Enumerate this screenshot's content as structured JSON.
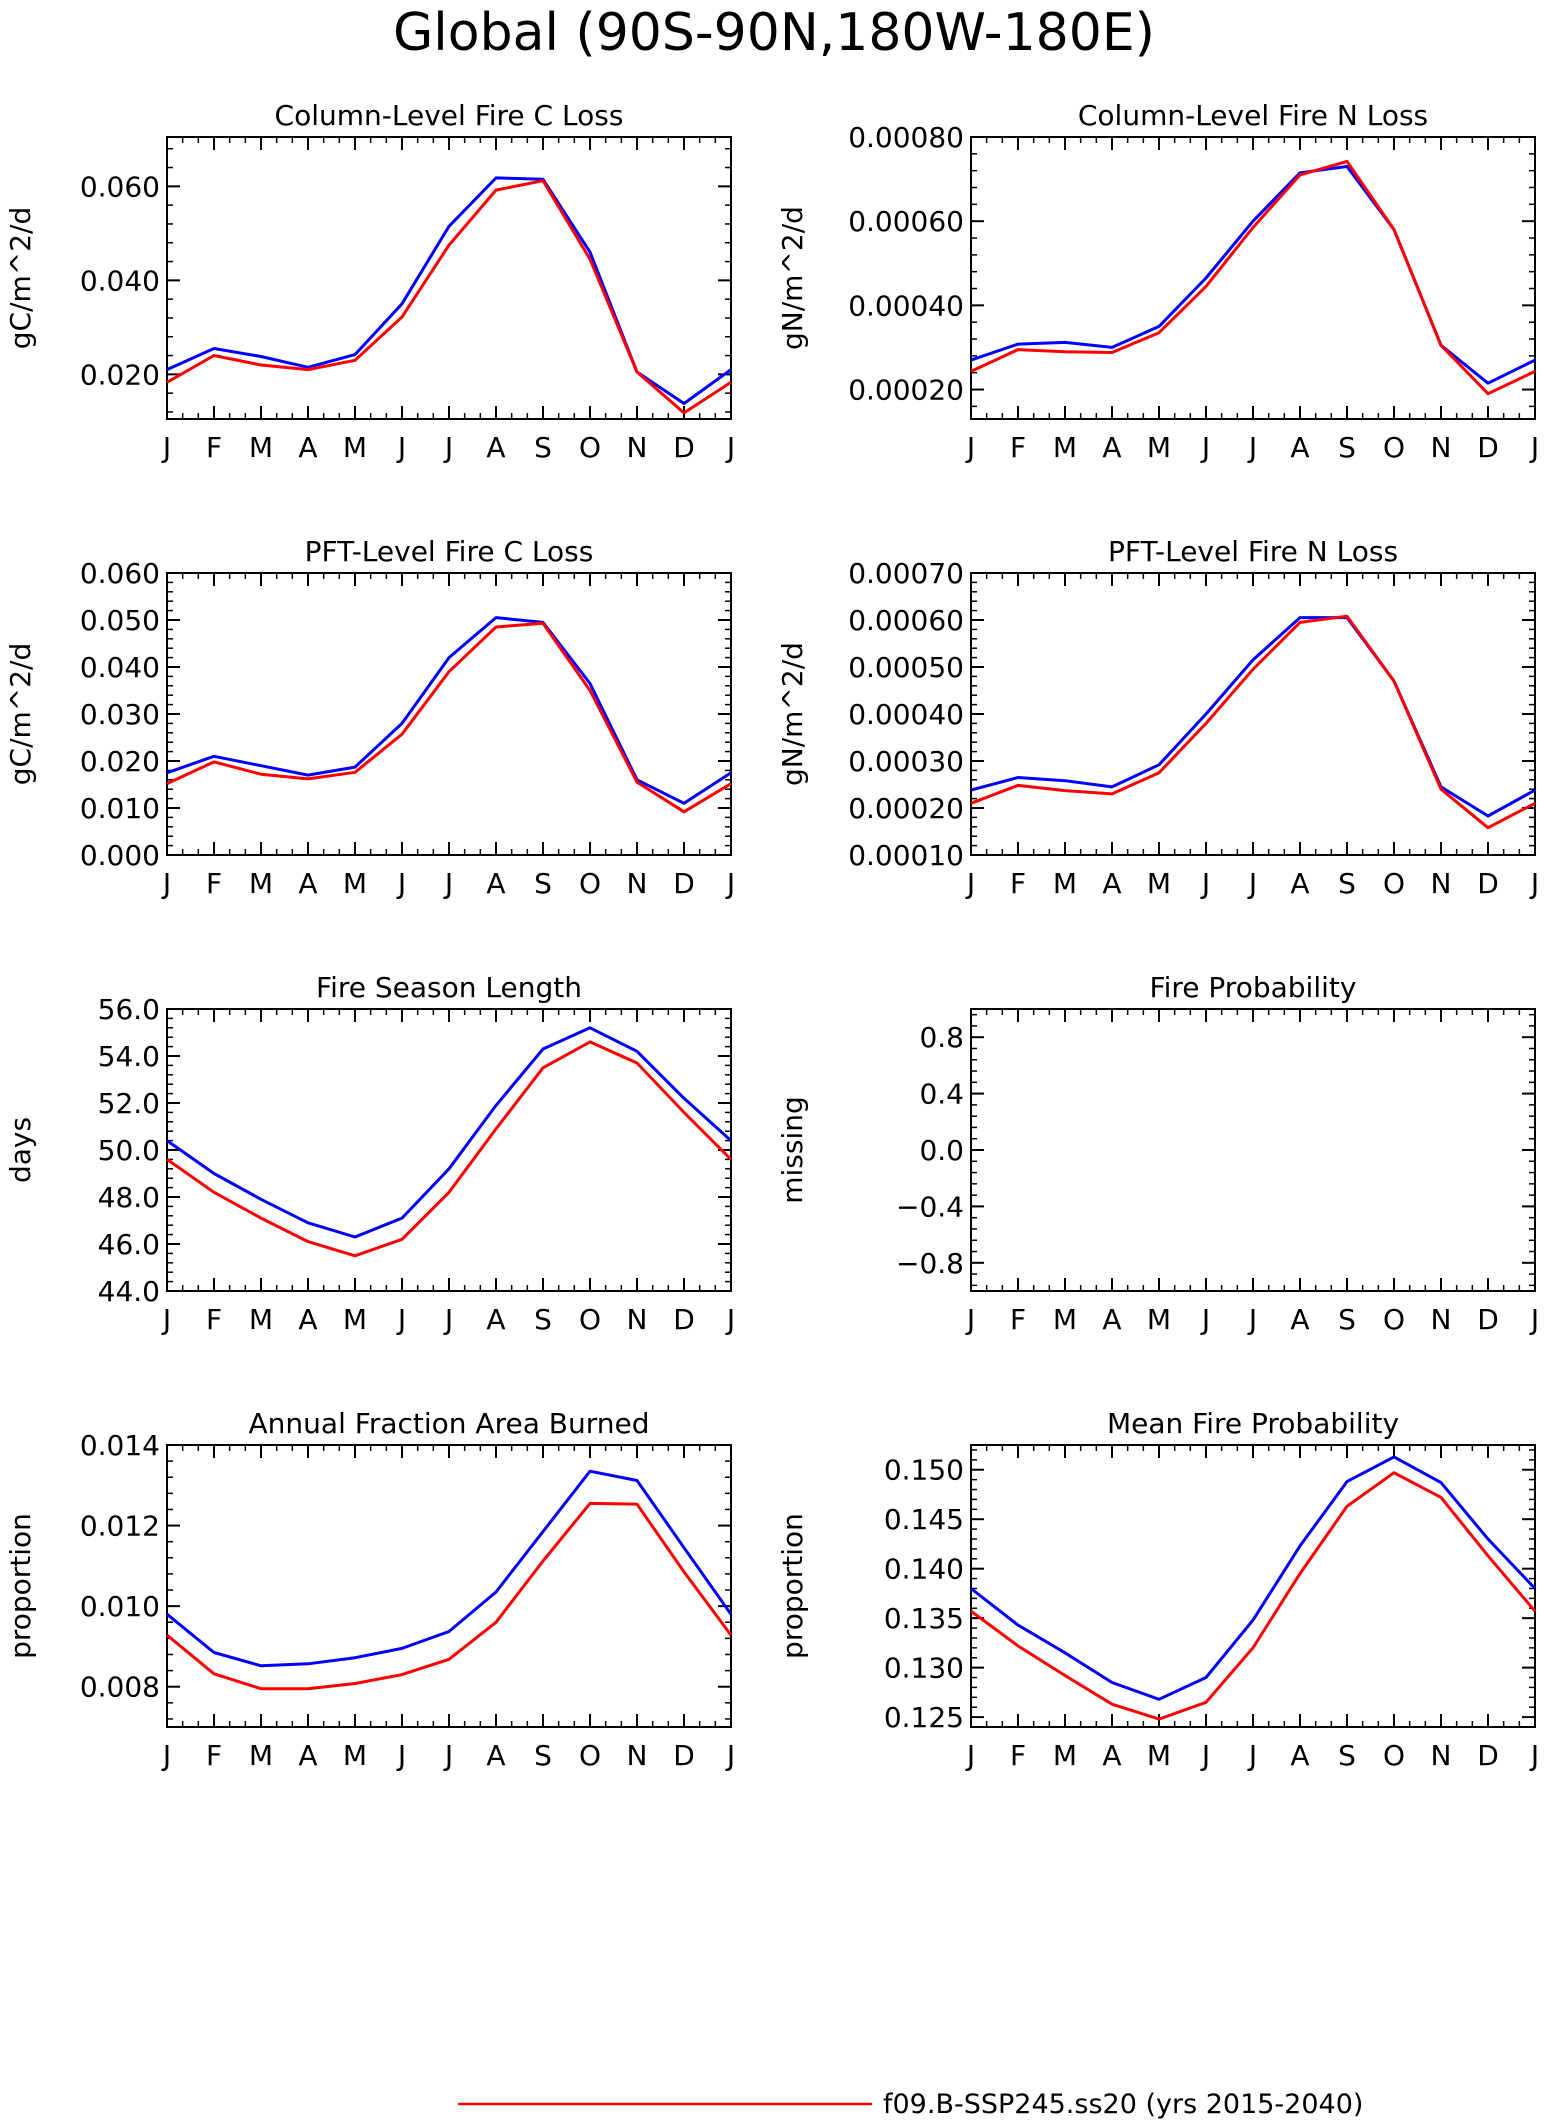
{
  "title": "Global (90S-90N,180W-180E)",
  "month_labels": [
    "J",
    "F",
    "M",
    "A",
    "M",
    "J",
    "J",
    "A",
    "S",
    "O",
    "N",
    "D",
    "J"
  ],
  "colors": {
    "series_red": "#ff0000",
    "series_blue": "#0000ff",
    "axis": "#000000"
  },
  "legend": {
    "label": "f09.B-SSP245.ss20 (yrs 2015-2040)"
  },
  "chart_data": [
    {
      "type": "line",
      "title": "Column-Level Fire C Loss",
      "ylabel": "gC/m^2/d",
      "ylim": [
        0.0105,
        0.0705
      ],
      "yticks": [
        0.02,
        0.04,
        0.06
      ],
      "yticklabels": [
        "0.020",
        "0.040",
        "0.060"
      ],
      "series": [
        {
          "color": "#0000ff",
          "values": [
            0.021,
            0.0255,
            0.0238,
            0.0215,
            0.0242,
            0.035,
            0.0515,
            0.0618,
            0.0615,
            0.046,
            0.0205,
            0.0138,
            0.021
          ]
        },
        {
          "color": "#ff0000",
          "values": [
            0.0183,
            0.024,
            0.022,
            0.021,
            0.023,
            0.0322,
            0.0475,
            0.0592,
            0.0612,
            0.0445,
            0.0205,
            0.0118,
            0.0183
          ]
        }
      ]
    },
    {
      "type": "line",
      "title": "Column-Level Fire N Loss",
      "ylabel": "gN/m^2/d",
      "ylim": [
        0.00013,
        0.0008
      ],
      "yticks": [
        0.0002,
        0.0004,
        0.0006,
        0.0008
      ],
      "yticklabels": [
        "0.00020",
        "0.00040",
        "0.00060",
        "0.00080"
      ],
      "series": [
        {
          "color": "#0000ff",
          "values": [
            0.00027,
            0.000308,
            0.000312,
            0.0003,
            0.00035,
            0.000465,
            0.0006,
            0.000715,
            0.00073,
            0.00058,
            0.000305,
            0.000215,
            0.00027
          ]
        },
        {
          "color": "#ff0000",
          "values": [
            0.000243,
            0.000295,
            0.00029,
            0.000288,
            0.000335,
            0.000445,
            0.000585,
            0.00071,
            0.000742,
            0.00058,
            0.000305,
            0.00019,
            0.000243
          ]
        }
      ]
    },
    {
      "type": "line",
      "title": "PFT-Level Fire C Loss",
      "ylabel": "gC/m^2/d",
      "ylim": [
        0.0,
        0.06
      ],
      "yticks": [
        0.0,
        0.01,
        0.02,
        0.03,
        0.04,
        0.05,
        0.06
      ],
      "yticklabels": [
        "0.000",
        "0.010",
        "0.020",
        "0.030",
        "0.040",
        "0.050",
        "0.060"
      ],
      "series": [
        {
          "color": "#0000ff",
          "values": [
            0.0175,
            0.021,
            0.019,
            0.017,
            0.0187,
            0.028,
            0.042,
            0.0505,
            0.0495,
            0.0365,
            0.016,
            0.011,
            0.0175
          ]
        },
        {
          "color": "#ff0000",
          "values": [
            0.0152,
            0.0198,
            0.0172,
            0.0162,
            0.0176,
            0.0257,
            0.039,
            0.0485,
            0.0493,
            0.035,
            0.0155,
            0.0092,
            0.0152
          ]
        }
      ]
    },
    {
      "type": "line",
      "title": "PFT-Level Fire N Loss",
      "ylabel": "gN/m^2/d",
      "ylim": [
        0.0001,
        0.0007
      ],
      "yticks": [
        0.0001,
        0.0002,
        0.0003,
        0.0004,
        0.0005,
        0.0006,
        0.0007
      ],
      "yticklabels": [
        "0.00010",
        "0.00020",
        "0.00030",
        "0.00040",
        "0.00050",
        "0.00060",
        "0.00070"
      ],
      "series": [
        {
          "color": "#0000ff",
          "values": [
            0.000238,
            0.000265,
            0.000258,
            0.000245,
            0.000292,
            0.0004,
            0.000515,
            0.000605,
            0.000605,
            0.00047,
            0.000245,
            0.000183,
            0.000238
          ]
        },
        {
          "color": "#ff0000",
          "values": [
            0.00021,
            0.000248,
            0.000237,
            0.00023,
            0.000275,
            0.00038,
            0.000495,
            0.000595,
            0.000608,
            0.00047,
            0.00024,
            0.000158,
            0.00021
          ]
        }
      ]
    },
    {
      "type": "line",
      "title": "Fire Season Length",
      "ylabel": "days",
      "ylim": [
        44.0,
        56.0
      ],
      "yticks": [
        44,
        46,
        48,
        50,
        52,
        54,
        56
      ],
      "yticklabels": [
        "44.0",
        "46.0",
        "48.0",
        "50.0",
        "52.0",
        "54.0",
        "56.0"
      ],
      "series": [
        {
          "color": "#0000ff",
          "values": [
            50.4,
            49.0,
            47.9,
            46.9,
            46.3,
            47.1,
            49.2,
            51.9,
            54.3,
            55.2,
            54.2,
            52.2,
            50.4
          ]
        },
        {
          "color": "#ff0000",
          "values": [
            49.6,
            48.2,
            47.1,
            46.1,
            45.5,
            46.2,
            48.2,
            50.9,
            53.5,
            54.6,
            53.7,
            51.6,
            49.6
          ]
        }
      ]
    },
    {
      "type": "line",
      "title": "Fire Probability",
      "ylabel": "missing",
      "ylim": [
        -1.0,
        1.0
      ],
      "yticks": [
        -0.8,
        -0.4,
        0.0,
        0.4,
        0.8
      ],
      "yticklabels": [
        "−0.8",
        "−0.4",
        "0.0",
        "0.4",
        "0.8"
      ],
      "series": []
    },
    {
      "type": "line",
      "title": "Annual Fraction Area Burned",
      "ylabel": "proportion",
      "ylim": [
        0.007,
        0.014
      ],
      "yticks": [
        0.008,
        0.01,
        0.012,
        0.014
      ],
      "yticklabels": [
        "0.008",
        "0.010",
        "0.012",
        "0.014"
      ],
      "series": [
        {
          "color": "#0000ff",
          "values": [
            0.0098,
            0.00885,
            0.00852,
            0.00857,
            0.00872,
            0.00895,
            0.00937,
            0.01035,
            0.01185,
            0.01335,
            0.01312,
            0.01145,
            0.0098
          ]
        },
        {
          "color": "#ff0000",
          "values": [
            0.00928,
            0.00832,
            0.00795,
            0.00795,
            0.00808,
            0.0083,
            0.00868,
            0.0096,
            0.01112,
            0.01255,
            0.01253,
            0.01085,
            0.00928
          ]
        }
      ]
    },
    {
      "type": "line",
      "title": "Mean Fire Probability",
      "ylabel": "proportion",
      "ylim": [
        0.124,
        0.1525
      ],
      "yticks": [
        0.125,
        0.13,
        0.135,
        0.14,
        0.145,
        0.15
      ],
      "yticklabels": [
        "0.125",
        "0.130",
        "0.135",
        "0.140",
        "0.145",
        "0.150"
      ],
      "series": [
        {
          "color": "#0000ff",
          "values": [
            0.138,
            0.1343,
            0.1315,
            0.1285,
            0.1268,
            0.129,
            0.1348,
            0.1423,
            0.1488,
            0.1513,
            0.1487,
            0.143,
            0.138
          ]
        },
        {
          "color": "#ff0000",
          "values": [
            0.1357,
            0.1322,
            0.1292,
            0.1263,
            0.1248,
            0.1265,
            0.132,
            0.1395,
            0.1463,
            0.1497,
            0.1472,
            0.1413,
            0.1357
          ]
        }
      ]
    }
  ]
}
